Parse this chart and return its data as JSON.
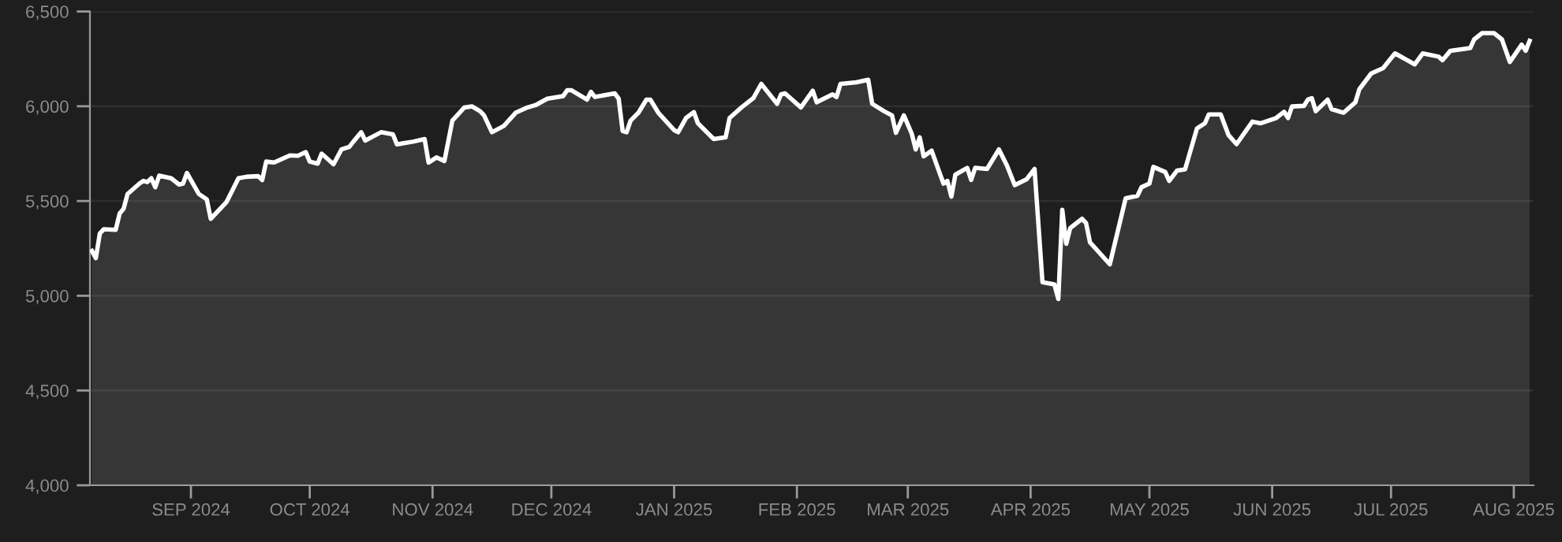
{
  "chart_data": {
    "type": "area",
    "series": [
      {
        "color": "#ffffff",
        "x": [
          "2024-08-07",
          "2024-08-08",
          "2024-08-09",
          "2024-08-10",
          "2024-08-13",
          "2024-08-14",
          "2024-08-15",
          "2024-08-16",
          "2024-08-19",
          "2024-08-20",
          "2024-08-21",
          "2024-08-22",
          "2024-08-23",
          "2024-08-24",
          "2024-08-27",
          "2024-08-29",
          "2024-08-30",
          "2024-08-31",
          "2024-09-03",
          "2024-09-05",
          "2024-09-06",
          "2024-09-10",
          "2024-09-13",
          "2024-09-15",
          "2024-09-18",
          "2024-09-19",
          "2024-09-20",
          "2024-09-22",
          "2024-09-24",
          "2024-09-26",
          "2024-09-28",
          "2024-09-30",
          "2024-10-01",
          "2024-10-03",
          "2024-10-04",
          "2024-10-07",
          "2024-10-09",
          "2024-10-11",
          "2024-10-12",
          "2024-10-14",
          "2024-10-15",
          "2024-10-17",
          "2024-10-19",
          "2024-10-22",
          "2024-10-23",
          "2024-10-27",
          "2024-10-30",
          "2024-10-31",
          "2024-11-02",
          "2024-11-04",
          "2024-11-06",
          "2024-11-09",
          "2024-11-11",
          "2024-11-13",
          "2024-11-14",
          "2024-11-16",
          "2024-11-19",
          "2024-11-22",
          "2024-11-25",
          "2024-11-27",
          "2024-11-30",
          "2024-12-04",
          "2024-12-05",
          "2024-12-06",
          "2024-12-10",
          "2024-12-11",
          "2024-12-12",
          "2024-12-17",
          "2024-12-18",
          "2024-12-19",
          "2024-12-20",
          "2024-12-21",
          "2024-12-23",
          "2024-12-25",
          "2024-12-26",
          "2024-12-28",
          "2025-01-01",
          "2025-01-02",
          "2025-01-04",
          "2025-01-06",
          "2025-01-07",
          "2025-01-11",
          "2025-01-14",
          "2025-01-15",
          "2025-01-18",
          "2025-01-21",
          "2025-01-23",
          "2025-01-27",
          "2025-01-28",
          "2025-01-29",
          "2025-02-02",
          "2025-02-05",
          "2025-02-06",
          "2025-02-10",
          "2025-02-11",
          "2025-02-12",
          "2025-02-16",
          "2025-02-19",
          "2025-02-20",
          "2025-02-23",
          "2025-02-25",
          "2025-02-26",
          "2025-02-28",
          "2025-03-02",
          "2025-03-03",
          "2025-03-04",
          "2025-03-05",
          "2025-03-07",
          "2025-03-10",
          "2025-03-11",
          "2025-03-12",
          "2025-03-13",
          "2025-03-16",
          "2025-03-17",
          "2025-03-18",
          "2025-03-21",
          "2025-03-24",
          "2025-03-26",
          "2025-03-28",
          "2025-03-31",
          "2025-04-02",
          "2025-04-04",
          "2025-04-07",
          "2025-04-08",
          "2025-04-09",
          "2025-04-10",
          "2025-04-11",
          "2025-04-14",
          "2025-04-15",
          "2025-04-16",
          "2025-04-21",
          "2025-04-25",
          "2025-04-28",
          "2025-04-29",
          "2025-05-01",
          "2025-05-02",
          "2025-05-05",
          "2025-05-06",
          "2025-05-08",
          "2025-05-10",
          "2025-05-13",
          "2025-05-15",
          "2025-05-16",
          "2025-05-19",
          "2025-05-21",
          "2025-05-23",
          "2025-05-27",
          "2025-05-29",
          "2025-06-02",
          "2025-06-04",
          "2025-06-05",
          "2025-06-06",
          "2025-06-09",
          "2025-06-10",
          "2025-06-11",
          "2025-06-12",
          "2025-06-15",
          "2025-06-16",
          "2025-06-19",
          "2025-06-22",
          "2025-06-23",
          "2025-06-26",
          "2025-06-29",
          "2025-07-02",
          "2025-07-07",
          "2025-07-09",
          "2025-07-13",
          "2025-07-14",
          "2025-07-16",
          "2025-07-21",
          "2025-07-22",
          "2025-07-24",
          "2025-07-27",
          "2025-07-29",
          "2025-07-31",
          "2025-08-03",
          "2025-08-04",
          "2025-08-05"
        ],
        "values": [
          5237,
          5199,
          5329,
          5351,
          5348,
          5434,
          5459,
          5537,
          5592,
          5606,
          5600,
          5620,
          5573,
          5634,
          5620,
          5587,
          5592,
          5648,
          5537,
          5509,
          5406,
          5495,
          5620,
          5628,
          5631,
          5611,
          5708,
          5703,
          5722,
          5741,
          5739,
          5758,
          5708,
          5697,
          5750,
          5694,
          5772,
          5786,
          5813,
          5863,
          5819,
          5841,
          5863,
          5852,
          5799,
          5813,
          5827,
          5703,
          5730,
          5711,
          5924,
          5993,
          5999,
          5974,
          5952,
          5863,
          5896,
          5966,
          5994,
          6006,
          6040,
          6054,
          6085,
          6085,
          6035,
          6076,
          6049,
          6068,
          6040,
          5869,
          5863,
          5924,
          5966,
          6035,
          6035,
          5966,
          5874,
          5863,
          5938,
          5969,
          5910,
          5827,
          5836,
          5938,
          5994,
          6043,
          6118,
          6013,
          6063,
          6068,
          5994,
          6082,
          6021,
          6063,
          6049,
          6118,
          6126,
          6140,
          6013,
          5974,
          5952,
          5860,
          5952,
          5855,
          5772,
          5836,
          5736,
          5766,
          5592,
          5606,
          5523,
          5639,
          5675,
          5611,
          5675,
          5669,
          5772,
          5689,
          5584,
          5615,
          5669,
          5071,
          5060,
          4983,
          5454,
          5274,
          5357,
          5406,
          5384,
          5282,
          5166,
          5514,
          5528,
          5573,
          5592,
          5680,
          5653,
          5606,
          5661,
          5667,
          5883,
          5910,
          5957,
          5957,
          5847,
          5800,
          5919,
          5910,
          5938,
          5971,
          5938,
          5999,
          6002,
          6035,
          6043,
          5974,
          6035,
          5985,
          5966,
          6021,
          6090,
          6173,
          6201,
          6279,
          6221,
          6279,
          6262,
          6243,
          6293,
          6307,
          6353,
          6386,
          6386,
          6353,
          6234,
          6325,
          6293,
          6345
        ]
      }
    ],
    "xlim": [
      "2024-08-06T12:00",
      "2025-08-06"
    ],
    "xticks": [
      {
        "value": "2024-09-01",
        "label": "SEP 2024"
      },
      {
        "value": "2024-10-01",
        "label": "OCT 2024"
      },
      {
        "value": "2024-11-01",
        "label": "NOV 2024"
      },
      {
        "value": "2024-12-01",
        "label": "DEC 2024"
      },
      {
        "value": "2025-01-01",
        "label": "JAN 2025"
      },
      {
        "value": "2025-02-01",
        "label": "FEB 2025"
      },
      {
        "value": "2025-03-01",
        "label": "MAR 2025"
      },
      {
        "value": "2025-04-01",
        "label": "APR 2025"
      },
      {
        "value": "2025-05-01",
        "label": "MAY 2025"
      },
      {
        "value": "2025-06-01",
        "label": "JUN 2025"
      },
      {
        "value": "2025-07-01",
        "label": "JUL 2025"
      },
      {
        "value": "2025-08-01",
        "label": "AUG 2025"
      }
    ],
    "ylim": [
      4000,
      6500
    ],
    "yticks": [
      {
        "value": 4000,
        "label": "4,000"
      },
      {
        "value": 4500,
        "label": "4,500"
      },
      {
        "value": 5000,
        "label": "5,000"
      },
      {
        "value": 5500,
        "label": "5,500"
      },
      {
        "value": 6000,
        "label": "6,000"
      },
      {
        "value": 6500,
        "label": "6,500"
      }
    ],
    "grid": "y",
    "marker": "none",
    "line_style": "solid"
  }
}
